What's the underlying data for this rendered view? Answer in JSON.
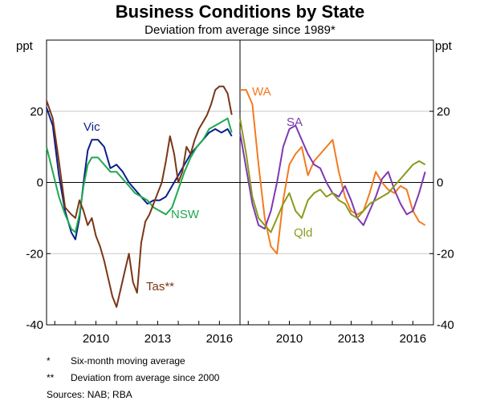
{
  "chart_data": {
    "type": "line",
    "title": "Business Conditions by State",
    "subtitle": "Deviation from average since 1989*",
    "ylabel": "ppt",
    "ylim": [
      -40,
      40
    ],
    "yticks": [
      -40,
      -20,
      0,
      20
    ],
    "xlim": [
      2007.6,
      2017.0
    ],
    "xticks": [
      2010,
      2013,
      2016
    ],
    "grid": true,
    "panels": [
      {
        "name": "left",
        "series": [
          {
            "name": "Vic",
            "color": "#0c1f8c",
            "x": [
              2007.6,
              2007.9,
              2008.2,
              2008.5,
              2008.8,
              2009.0,
              2009.2,
              2009.4,
              2009.6,
              2009.8,
              2010.1,
              2010.4,
              2010.7,
              2011.0,
              2011.3,
              2011.6,
              2011.9,
              2012.2,
              2012.5,
              2012.8,
              2013.1,
              2013.4,
              2013.7,
              2014.0,
              2014.3,
              2014.6,
              2014.9,
              2015.2,
              2015.5,
              2015.8,
              2016.1,
              2016.4,
              2016.6
            ],
            "values": [
              21,
              16,
              2,
              -8,
              -14,
              -16,
              -10,
              0,
              9,
              12,
              12,
              10,
              4,
              5,
              3,
              0,
              -2,
              -4,
              -6,
              -5,
              -5,
              -4,
              -1,
              2,
              5,
              8,
              10,
              12,
              14,
              15,
              14,
              15,
              13
            ]
          },
          {
            "name": "NSW",
            "color": "#1fa94e",
            "x": [
              2007.6,
              2007.9,
              2008.2,
              2008.5,
              2008.8,
              2009.0,
              2009.2,
              2009.4,
              2009.6,
              2009.8,
              2010.1,
              2010.4,
              2010.7,
              2011.0,
              2011.3,
              2011.6,
              2011.9,
              2012.2,
              2012.5,
              2012.8,
              2013.1,
              2013.4,
              2013.7,
              2014.0,
              2014.3,
              2014.6,
              2014.9,
              2015.2,
              2015.5,
              2015.8,
              2016.1,
              2016.4,
              2016.6
            ],
            "values": [
              10,
              3,
              -4,
              -9,
              -13,
              -14,
              -9,
              -1,
              5,
              7,
              7,
              5,
              3,
              3,
              1,
              -1,
              -3,
              -4,
              -5,
              -7,
              -8,
              -9,
              -7,
              -2,
              3,
              7,
              10,
              12,
              15,
              16,
              17,
              18,
              14
            ]
          },
          {
            "name": "Tas**",
            "color": "#7a3616",
            "x": [
              2007.6,
              2007.9,
              2008.2,
              2008.5,
              2008.8,
              2009.0,
              2009.2,
              2009.4,
              2009.6,
              2009.8,
              2010.0,
              2010.2,
              2010.4,
              2010.6,
              2010.8,
              2011.0,
              2011.2,
              2011.4,
              2011.6,
              2011.8,
              2012.0,
              2012.2,
              2012.4,
              2012.6,
              2012.8,
              2013.0,
              2013.2,
              2013.4,
              2013.6,
              2013.8,
              2014.0,
              2014.2,
              2014.4,
              2014.6,
              2014.8,
              2015.0,
              2015.2,
              2015.4,
              2015.6,
              2015.8,
              2016.0,
              2016.2,
              2016.4,
              2016.6
            ],
            "values": [
              23,
              18,
              6,
              -7,
              -9,
              -10,
              -5,
              -8,
              -12,
              -10,
              -15,
              -18,
              -22,
              -27,
              -32,
              -35,
              -30,
              -25,
              -20,
              -28,
              -31,
              -17,
              -11,
              -9,
              -6,
              -3,
              0,
              6,
              13,
              8,
              0,
              3,
              10,
              8,
              12,
              15,
              17,
              19,
              22,
              26,
              27,
              27,
              25,
              19
            ]
          }
        ]
      },
      {
        "name": "right",
        "series": [
          {
            "name": "WA",
            "color": "#f47a20",
            "x": [
              2007.6,
              2007.9,
              2008.2,
              2008.5,
              2008.8,
              2009.1,
              2009.4,
              2009.7,
              2010.0,
              2010.3,
              2010.6,
              2010.9,
              2011.2,
              2011.5,
              2011.8,
              2012.1,
              2012.4,
              2012.7,
              2013.0,
              2013.3,
              2013.6,
              2013.9,
              2014.2,
              2014.5,
              2014.8,
              2015.1,
              2015.4,
              2015.7,
              2016.0,
              2016.3,
              2016.6
            ],
            "values": [
              26,
              26,
              22,
              5,
              -10,
              -18,
              -20,
              -5,
              5,
              8,
              10,
              2,
              6,
              8,
              10,
              12,
              3,
              -4,
              -8,
              -9,
              -8,
              -3,
              3,
              0,
              -2,
              -3,
              -1,
              -2,
              -8,
              -11,
              -12
            ]
          },
          {
            "name": "SA",
            "color": "#7d3ab0",
            "x": [
              2007.6,
              2007.9,
              2008.2,
              2008.5,
              2008.8,
              2009.1,
              2009.4,
              2009.7,
              2010.0,
              2010.3,
              2010.6,
              2010.9,
              2011.2,
              2011.5,
              2011.8,
              2012.1,
              2012.4,
              2012.7,
              2013.0,
              2013.3,
              2013.6,
              2013.9,
              2014.2,
              2014.5,
              2014.8,
              2015.1,
              2015.4,
              2015.7,
              2016.0,
              2016.3,
              2016.6
            ],
            "values": [
              14,
              4,
              -6,
              -12,
              -13,
              -8,
              0,
              10,
              15,
              16,
              12,
              8,
              5,
              4,
              0,
              -3,
              -4,
              -1,
              -5,
              -10,
              -12,
              -8,
              -4,
              1,
              3,
              -2,
              -6,
              -9,
              -8,
              -3,
              3
            ]
          },
          {
            "name": "Qld",
            "color": "#8b9a1b",
            "x": [
              2007.6,
              2007.9,
              2008.2,
              2008.5,
              2008.8,
              2009.1,
              2009.4,
              2009.7,
              2010.0,
              2010.3,
              2010.6,
              2010.9,
              2011.2,
              2011.5,
              2011.8,
              2012.1,
              2012.4,
              2012.7,
              2013.0,
              2013.3,
              2013.6,
              2013.9,
              2014.2,
              2014.5,
              2014.8,
              2015.1,
              2015.4,
              2015.7,
              2016.0,
              2016.3,
              2016.6
            ],
            "values": [
              18,
              8,
              -4,
              -10,
              -12,
              -14,
              -10,
              -6,
              -3,
              -8,
              -10,
              -5,
              -3,
              -2,
              -4,
              -3,
              -5,
              -6,
              -9,
              -10,
              -8,
              -6,
              -5,
              -4,
              -3,
              -1,
              1,
              3,
              5,
              6,
              5
            ]
          }
        ]
      }
    ],
    "notes": [
      {
        "mark": "*",
        "text": "Six-month moving average"
      },
      {
        "mark": "**",
        "text": "Deviation from average since 2000"
      }
    ],
    "sources": "Sources:  NAB; RBA"
  }
}
